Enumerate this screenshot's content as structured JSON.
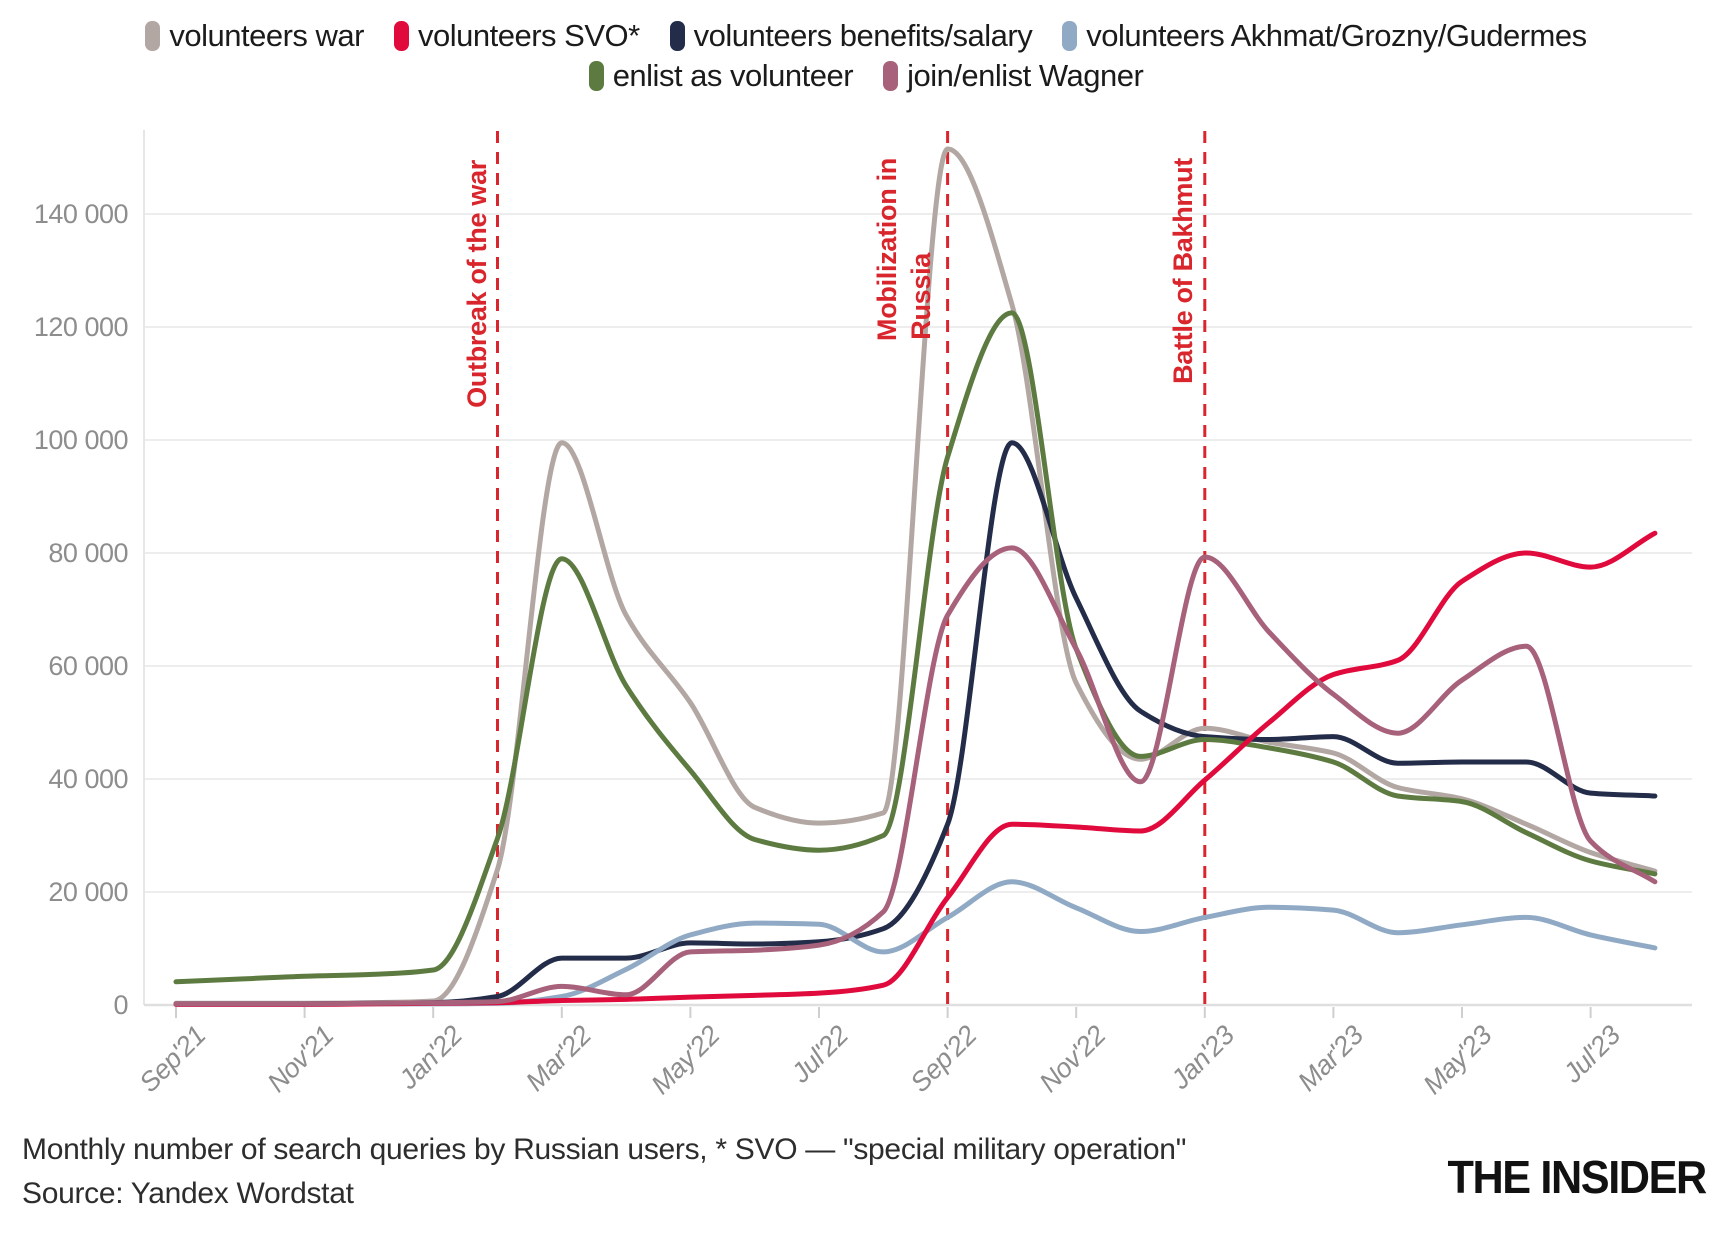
{
  "legend": {
    "row_split": 4
  },
  "chart_data": {
    "type": "line",
    "months": [
      "Sep'21",
      "Oct'21",
      "Nov'21",
      "Dec'21",
      "Jan'22",
      "Feb'22",
      "Mar'22",
      "Apr'22",
      "May'22",
      "Jun'22",
      "Jul'22",
      "Aug'22",
      "Sep'22",
      "Oct'22",
      "Nov'22",
      "Dec'22",
      "Jan'23",
      "Feb'23",
      "Mar'23",
      "Apr'23",
      "May'23",
      "Jun'23",
      "Jul'23",
      "Aug'23"
    ],
    "x_tick_labels": [
      "Sep'21",
      "Nov'21",
      "Jan'22",
      "Mar'22",
      "May'22",
      "Jul'22",
      "Sep'22",
      "Nov'22",
      "Jan'23",
      "Mar'23",
      "May'23",
      "Jul'23"
    ],
    "y_tick_labels": [
      "0",
      "20 000",
      "40 000",
      "60 000",
      "80 000",
      "100 000",
      "120 000",
      "140 000"
    ],
    "y_tick_values": [
      0,
      20000,
      40000,
      60000,
      80000,
      100000,
      120000,
      140000
    ],
    "ylim": [
      0,
      155000
    ],
    "grid": true,
    "legend_position": "top",
    "series": [
      {
        "name": "volunteers war",
        "color": "#b2a7a3",
        "values": [
          300,
          300,
          300,
          400,
          700,
          24000,
          99500,
          69000,
          53500,
          35000,
          32200,
          34000,
          151500,
          124000,
          57000,
          43500,
          49000,
          46500,
          44600,
          38500,
          36500,
          32000,
          27000,
          23700
        ]
      },
      {
        "name": "volunteers SVO*",
        "color": "#e00a3c",
        "values": [
          100,
          100,
          100,
          200,
          300,
          400,
          800,
          1000,
          1400,
          1700,
          2100,
          3500,
          19000,
          32000,
          31500,
          30800,
          39800,
          50000,
          58500,
          61000,
          75000,
          80000,
          77500,
          83500
        ]
      },
      {
        "name": "volunteers benefits/salary",
        "color": "#232c49",
        "values": [
          200,
          200,
          200,
          300,
          400,
          1500,
          8300,
          8300,
          11000,
          10800,
          11200,
          13500,
          32000,
          99500,
          72000,
          52000,
          47500,
          47000,
          47500,
          42800,
          43000,
          43000,
          37500,
          37000
        ]
      },
      {
        "name": "volunteers Akhmat/Grozny/Gudermes",
        "color": "#90aac5",
        "values": [
          100,
          100,
          100,
          200,
          200,
          300,
          1500,
          6300,
          12400,
          14500,
          14300,
          9400,
          15500,
          21800,
          17200,
          13000,
          15500,
          17300,
          16800,
          12800,
          14200,
          15500,
          12400,
          10100
        ]
      },
      {
        "name": "enlist as volunteer",
        "color": "#5d7b41",
        "values": [
          4100,
          4600,
          5100,
          5400,
          6200,
          29500,
          79000,
          56500,
          41500,
          29300,
          27400,
          30000,
          97000,
          122500,
          63000,
          44000,
          47000,
          45500,
          43000,
          37000,
          36000,
          30500,
          25500,
          23200
        ]
      },
      {
        "name": "join/enlist Wagner",
        "color": "#a7617a",
        "values": [
          200,
          200,
          200,
          300,
          400,
          600,
          3300,
          1800,
          9400,
          9700,
          10600,
          16500,
          69000,
          80900,
          63000,
          39500,
          79300,
          66000,
          55000,
          48100,
          57500,
          63500,
          29000,
          21800
        ]
      }
    ],
    "draw_order": [
      0,
      2,
      3,
      4,
      1,
      5
    ],
    "annotations": [
      {
        "lines": [
          "Outbreak of the war"
        ],
        "month": "Feb'22"
      },
      {
        "lines": [
          "Mobilization in",
          "Russia"
        ],
        "month": "Sep'22"
      },
      {
        "lines": [
          "Battle of Bakhmut"
        ],
        "month": "Jan'23"
      }
    ],
    "annotation_color": "#d9252c"
  },
  "caption": {
    "line1": "Monthly number of search queries by Russian users, * SVO — \"special military operation\"",
    "line2": "Source: Yandex Wordstat"
  },
  "logo": "THE INSIDER"
}
